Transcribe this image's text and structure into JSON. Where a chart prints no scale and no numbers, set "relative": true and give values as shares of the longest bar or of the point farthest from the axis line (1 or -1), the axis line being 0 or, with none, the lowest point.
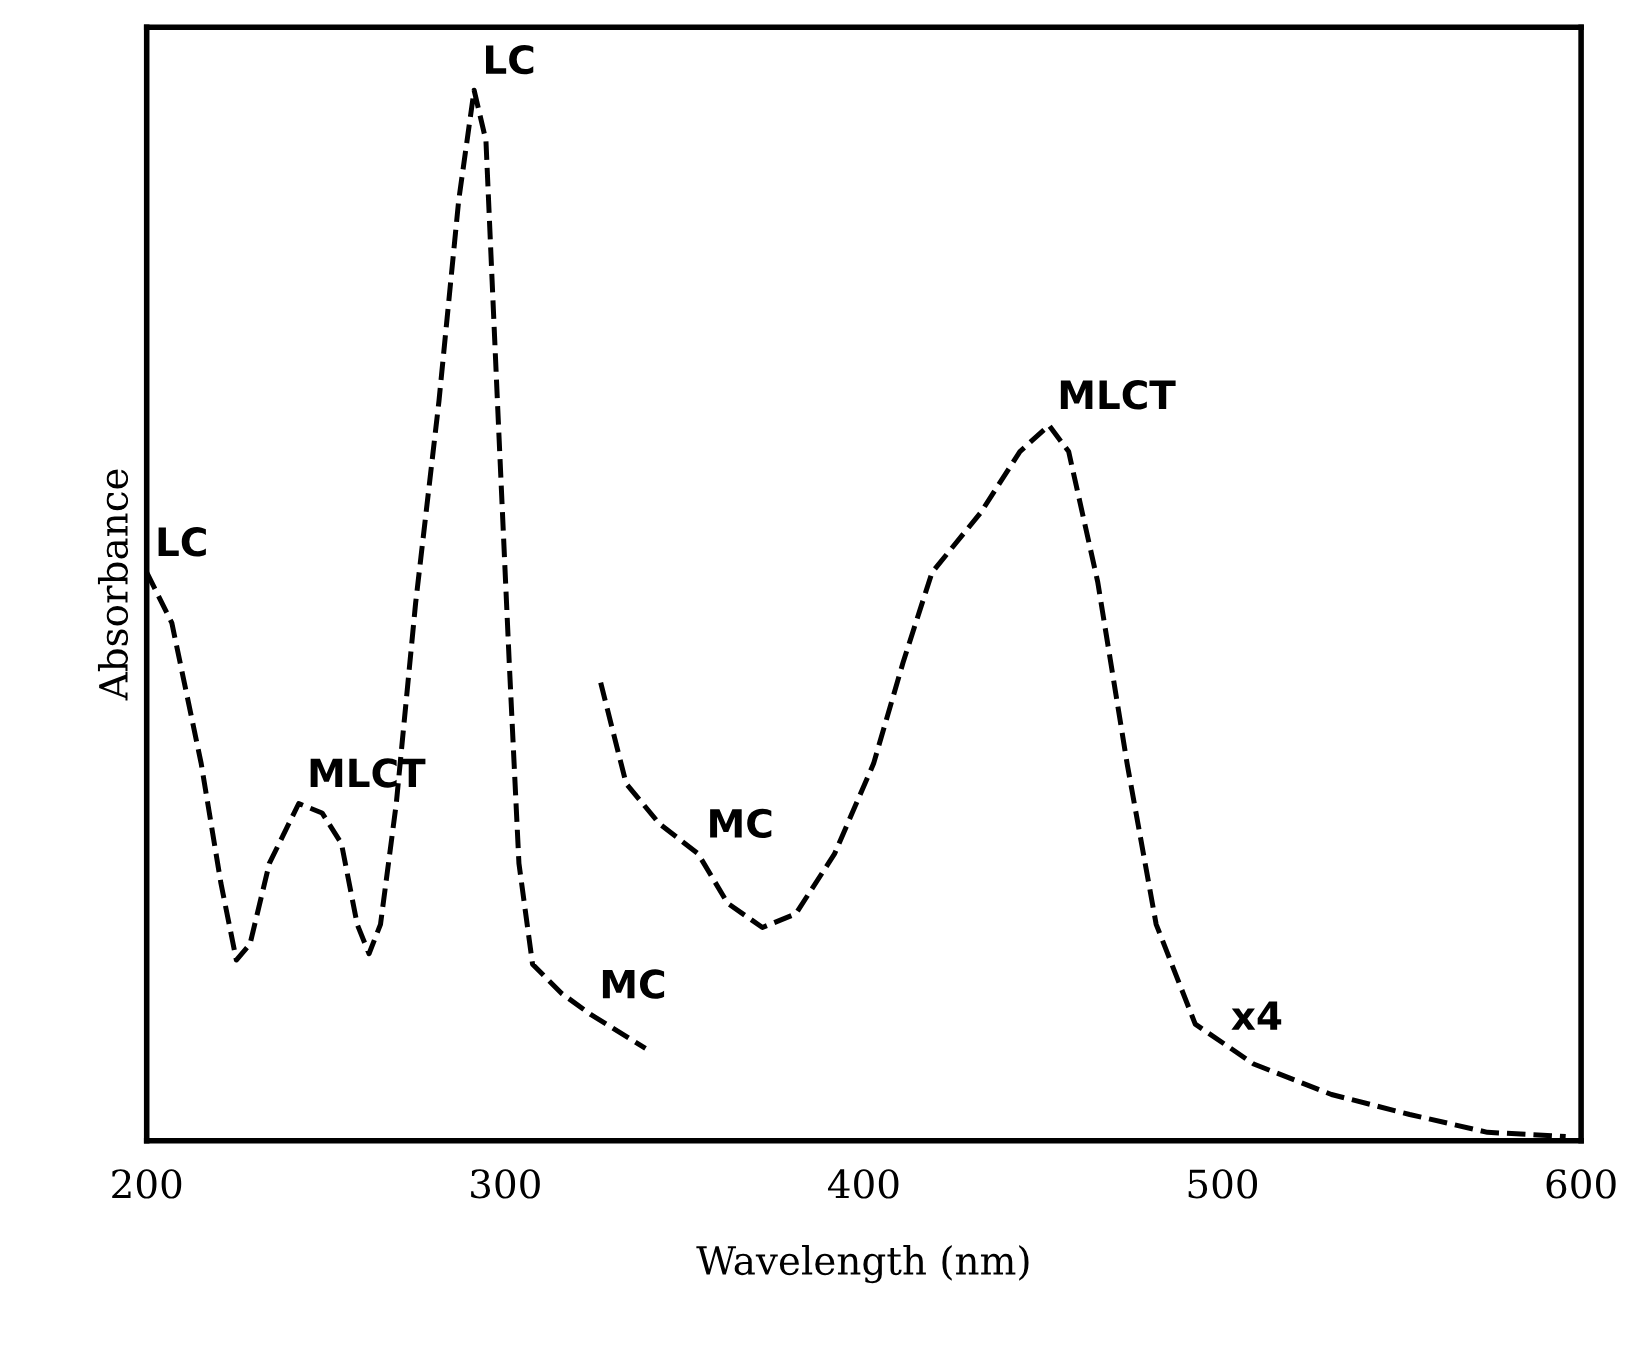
{
  "chart_data": {
    "type": "line",
    "xlabel": "Wavelength (nm)",
    "ylabel": "Absorbance",
    "relative": true,
    "xlim": [
      200,
      600
    ],
    "xticks": [
      200,
      300,
      400,
      500,
      600
    ],
    "grid": false,
    "marker": "none",
    "line_style": "dashed",
    "series": [
      {
        "color": "#000000",
        "x": [
          200,
          207,
          215.2,
          220.7,
          225,
          228.8,
          234.2,
          242.4,
          248.9,
          254.3,
          258.7,
          262,
          265.2,
          269.6,
          275,
          281.5,
          287,
          291.3,
          294.6,
          297.8,
          301.1,
          303.8,
          307.6,
          315.8,
          323.9,
          339.1
        ],
        "values": [
          0.541,
          0.493,
          0.359,
          0.245,
          0.172,
          0.187,
          0.264,
          0.321,
          0.312,
          0.283,
          0.206,
          0.178,
          0.206,
          0.321,
          0.512,
          0.704,
          0.895,
          1.0,
          0.952,
          0.704,
          0.455,
          0.264,
          0.168,
          0.14,
          0.12,
          0.088
        ]
      },
      {
        "color": "#000000",
        "x": [
          326.6,
          333.7,
          342.9,
          353.8,
          362,
          371.7,
          381,
          391.8,
          402.7,
          410.9,
          419,
          432.6,
          443.5,
          451.6,
          457.1,
          465.2,
          473.4,
          481.5,
          492.4,
          508.7,
          530.4,
          552.2,
          573.9,
          595.7
        ],
        "values": [
          0.436,
          0.34,
          0.302,
          0.273,
          0.226,
          0.203,
          0.216,
          0.273,
          0.359,
          0.455,
          0.541,
          0.598,
          0.656,
          0.681,
          0.656,
          0.532,
          0.359,
          0.206,
          0.111,
          0.073,
          0.044,
          0.025,
          0.008,
          0.004
        ]
      }
    ],
    "annotations": [
      {
        "text": "LC",
        "x": 200,
        "y": 0.541
      },
      {
        "text": "MLCT",
        "x": 242.4,
        "y": 0.321
      },
      {
        "text": "LC",
        "x": 291.3,
        "y": 1.0
      },
      {
        "text": "MC",
        "x": 323.9,
        "y": 0.12
      },
      {
        "text": "MC",
        "x": 353.8,
        "y": 0.273
      },
      {
        "text": "MLCT",
        "x": 451.6,
        "y": 0.681
      },
      {
        "text": "x4",
        "x": 500,
        "y": 0.09
      }
    ]
  }
}
